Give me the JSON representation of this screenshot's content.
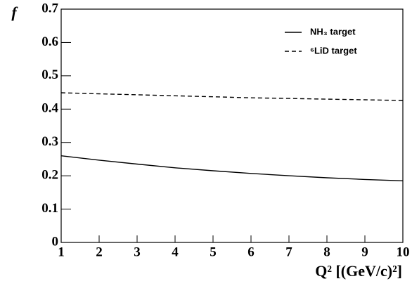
{
  "chart_data": {
    "type": "line",
    "xlabel": "Q² [(GeV/c)²]",
    "ylabel": "f",
    "x": [
      1,
      2,
      3,
      4,
      5,
      6,
      7,
      8,
      9,
      10
    ],
    "series": [
      {
        "name": "NH₃ target",
        "color": "#000000",
        "dash": "solid",
        "values": [
          0.26,
          0.247,
          0.235,
          0.224,
          0.215,
          0.207,
          0.2,
          0.194,
          0.189,
          0.185
        ]
      },
      {
        "name": "⁶LiD target",
        "color": "#000000",
        "dash": "dashed",
        "values": [
          0.449,
          0.446,
          0.443,
          0.44,
          0.437,
          0.434,
          0.432,
          0.43,
          0.428,
          0.426
        ]
      }
    ],
    "xlim": [
      1,
      10
    ],
    "xticks": [
      1,
      2,
      3,
      4,
      5,
      6,
      7,
      8,
      9,
      10
    ],
    "ylim": [
      0,
      0.7
    ],
    "yticks": [
      0,
      0.1,
      0.2,
      0.3,
      0.4,
      0.5,
      0.6,
      0.7
    ],
    "grid": false,
    "legend": "upper right"
  }
}
